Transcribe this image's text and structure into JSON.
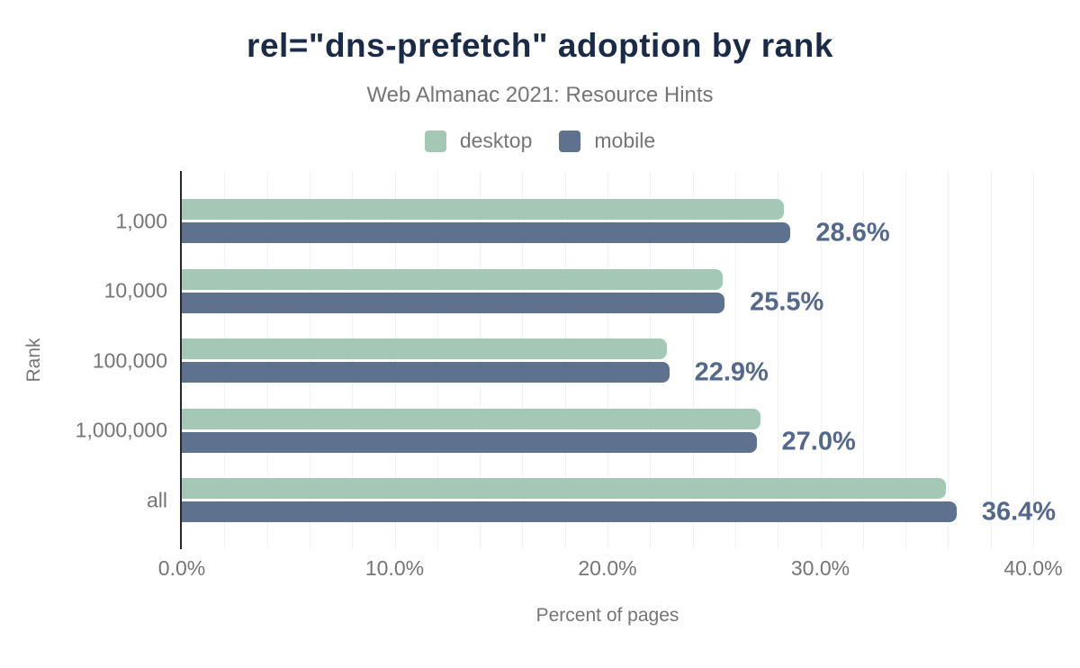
{
  "chart_data": {
    "type": "bar",
    "orientation": "horizontal",
    "title": "rel=\"dns-prefetch\" adoption by rank",
    "subtitle": "Web Almanac 2021: Resource Hints",
    "xlabel": "Percent of pages",
    "ylabel": "Rank",
    "categories": [
      "1,000",
      "10,000",
      "100,000",
      "1,000,000",
      "all"
    ],
    "series": [
      {
        "name": "desktop",
        "color": "#a4c8b5",
        "values": [
          28.3,
          25.4,
          22.8,
          27.2,
          35.9
        ]
      },
      {
        "name": "mobile",
        "color": "#5e7290",
        "values": [
          28.6,
          25.5,
          22.9,
          27.0,
          36.4
        ]
      }
    ],
    "annotations": [
      "28.6%",
      "25.5%",
      "22.9%",
      "27.0%",
      "36.4%"
    ],
    "annotation_series": "mobile",
    "x_ticks": [
      "0.0%",
      "10.0%",
      "20.0%",
      "30.0%",
      "40.0%"
    ],
    "x_tick_values": [
      0,
      10,
      20,
      30,
      40
    ],
    "xlim": [
      0,
      40
    ],
    "gridline_step_percent": 2,
    "legend_position": "top",
    "colors": {
      "title": "#1a2b49",
      "muted_text": "#757575",
      "annotation_text": "#54688c",
      "axis_line": "#26282e",
      "gridline": "#f2f2f2",
      "background": "#ffffff"
    }
  }
}
